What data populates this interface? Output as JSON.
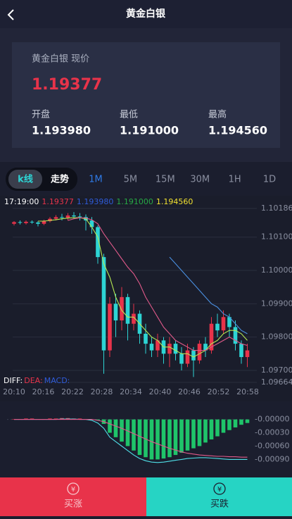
{
  "header": {
    "title": "黄金白银"
  },
  "quote": {
    "label": "黄金白银 现价",
    "price": "1.19377",
    "stats": [
      {
        "label": "开盘",
        "value": "1.193980"
      },
      {
        "label": "最低",
        "value": "1.191000"
      },
      {
        "label": "最高",
        "value": "1.194560"
      }
    ]
  },
  "tabs": {
    "modes": [
      "k线",
      "走势"
    ],
    "periods": [
      "1M",
      "5M",
      "15M",
      "30M",
      "1H",
      "1D"
    ]
  },
  "kline": {
    "info": [
      {
        "text": "17:19:00",
        "color": "#ffffff"
      },
      {
        "text": "1.19377",
        "color": "#e8334a"
      },
      {
        "text": "1.193980",
        "color": "#2f5bd8"
      },
      {
        "text": "1.191000",
        "color": "#27a845"
      },
      {
        "text": "1.194560",
        "color": "#f2e230"
      }
    ],
    "ylim": [
      1.09664,
      1.10186
    ],
    "yticks": [
      {
        "value": 1.10186,
        "label": "1.10186"
      },
      {
        "value": 1.101,
        "label": "1.10100"
      },
      {
        "value": 1.1,
        "label": "1.10000"
      },
      {
        "value": 1.099,
        "label": "1.09900"
      },
      {
        "value": 1.098,
        "label": "1.09800"
      },
      {
        "value": 1.097,
        "label": "1.09700"
      },
      {
        "value": 1.09664,
        "label": "1.09664"
      }
    ],
    "xticks": [
      "20:10",
      "20:16",
      "20:22",
      "20:28",
      "20:34",
      "20:40",
      "20:46",
      "20:52",
      "20:58"
    ],
    "up_color": "#e8334a",
    "down_color": "#2dd4d4",
    "candles": [
      {
        "o": 1.1014,
        "c": 1.10145,
        "h": 1.10148,
        "l": 1.10135
      },
      {
        "o": 1.10145,
        "c": 1.10143,
        "h": 1.1015,
        "l": 1.10138
      },
      {
        "o": 1.10142,
        "c": 1.10146,
        "h": 1.1015,
        "l": 1.10138
      },
      {
        "o": 1.10146,
        "c": 1.10144,
        "h": 1.1015,
        "l": 1.1014
      },
      {
        "o": 1.10144,
        "c": 1.1014,
        "h": 1.10148,
        "l": 1.10132
      },
      {
        "o": 1.1014,
        "c": 1.10148,
        "h": 1.10152,
        "l": 1.10136
      },
      {
        "o": 1.10148,
        "c": 1.10155,
        "h": 1.1016,
        "l": 1.10144
      },
      {
        "o": 1.10155,
        "c": 1.1016,
        "h": 1.10166,
        "l": 1.1015
      },
      {
        "o": 1.1016,
        "c": 1.10158,
        "h": 1.1017,
        "l": 1.1015
      },
      {
        "o": 1.10158,
        "c": 1.10165,
        "h": 1.10172,
        "l": 1.1015
      },
      {
        "o": 1.10165,
        "c": 1.10162,
        "h": 1.10175,
        "l": 1.10155
      },
      {
        "o": 1.10162,
        "c": 1.1016,
        "h": 1.10172,
        "l": 1.1015
      },
      {
        "o": 1.1016,
        "c": 1.1015,
        "h": 1.10168,
        "l": 1.1012
      },
      {
        "o": 1.1015,
        "c": 1.1013,
        "h": 1.1016,
        "l": 1.1011
      },
      {
        "o": 1.1013,
        "c": 1.1004,
        "h": 1.10135,
        "l": 1.1002
      },
      {
        "o": 1.1004,
        "c": 1.0976,
        "h": 1.1005,
        "l": 1.0969
      },
      {
        "o": 1.0976,
        "c": 1.099,
        "h": 1.0992,
        "l": 1.0974
      },
      {
        "o": 1.099,
        "c": 1.0985,
        "h": 1.0993,
        "l": 1.098
      },
      {
        "o": 1.0985,
        "c": 1.0992,
        "h": 1.0995,
        "l": 1.0982
      },
      {
        "o": 1.0992,
        "c": 1.0984,
        "h": 1.0993,
        "l": 1.0979
      },
      {
        "o": 1.0984,
        "c": 1.0987,
        "h": 1.099,
        "l": 1.0982
      },
      {
        "o": 1.0987,
        "c": 1.0981,
        "h": 1.0988,
        "l": 1.0978
      },
      {
        "o": 1.0981,
        "c": 1.0978,
        "h": 1.0984,
        "l": 1.0975
      },
      {
        "o": 1.0978,
        "c": 1.0976,
        "h": 1.098,
        "l": 1.0974
      },
      {
        "o": 1.0976,
        "c": 1.0979,
        "h": 1.0981,
        "l": 1.0974
      },
      {
        "o": 1.0979,
        "c": 1.0975,
        "h": 1.098,
        "l": 1.0972
      },
      {
        "o": 1.0975,
        "c": 1.0978,
        "h": 1.098,
        "l": 1.0971
      },
      {
        "o": 1.0978,
        "c": 1.0975,
        "h": 1.0979,
        "l": 1.0973
      },
      {
        "o": 1.0975,
        "c": 1.0972,
        "h": 1.0977,
        "l": 1.097
      },
      {
        "o": 1.0972,
        "c": 1.0976,
        "h": 1.0978,
        "l": 1.0971
      },
      {
        "o": 1.0976,
        "c": 1.0973,
        "h": 1.0977,
        "l": 1.0968
      },
      {
        "o": 1.0973,
        "c": 1.0978,
        "h": 1.0979,
        "l": 1.0972
      },
      {
        "o": 1.0978,
        "c": 1.0976,
        "h": 1.098,
        "l": 1.0974
      },
      {
        "o": 1.0976,
        "c": 1.0984,
        "h": 1.0986,
        "l": 1.0975
      },
      {
        "o": 1.0984,
        "c": 1.0982,
        "h": 1.0987,
        "l": 1.098
      },
      {
        "o": 1.0982,
        "c": 1.0986,
        "h": 1.0988,
        "l": 1.0981
      },
      {
        "o": 1.0986,
        "c": 1.0983,
        "h": 1.0987,
        "l": 1.098
      },
      {
        "o": 1.0983,
        "c": 1.0978,
        "h": 1.0985,
        "l": 1.0976
      },
      {
        "o": 1.0978,
        "c": 1.0974,
        "h": 1.0979,
        "l": 1.0972
      },
      {
        "o": 1.0974,
        "c": 1.0976,
        "h": 1.0978,
        "l": 1.0971
      }
    ],
    "ma": [
      {
        "color": "#b5e853",
        "values": [
          null,
          null,
          null,
          null,
          1.10148,
          1.10148,
          1.1015,
          1.10152,
          1.10155,
          1.10157,
          1.10158,
          1.10158,
          1.10155,
          1.1013,
          1.101,
          1.1002,
          1.0998,
          1.0992,
          1.0988,
          1.0986,
          1.0986,
          1.0984,
          1.0982,
          1.098,
          1.0979,
          1.0977,
          1.0977,
          1.0976,
          1.0975,
          1.0975,
          1.0974,
          1.0975,
          1.0976,
          1.0978,
          1.0979,
          1.0981,
          1.0982,
          1.0982,
          1.0981,
          1.0979
        ]
      },
      {
        "color": "#e05a8a",
        "values": [
          null,
          null,
          null,
          null,
          null,
          null,
          null,
          null,
          null,
          1.1015,
          1.10155,
          1.10158,
          1.10157,
          1.10152,
          1.1014,
          1.1011,
          1.10085,
          1.1006,
          1.10035,
          1.1001,
          1.0999,
          1.0996,
          1.0992,
          1.0989,
          1.0986,
          1.0983,
          1.0981,
          1.0979,
          1.0978,
          1.0977,
          1.0976,
          1.0976,
          1.0976,
          1.0977,
          1.0978,
          1.0979,
          1.098,
          1.0979,
          1.0978,
          1.09775
        ]
      },
      {
        "color": "#4a8fe0",
        "values": [
          null,
          null,
          null,
          null,
          null,
          null,
          null,
          null,
          null,
          null,
          null,
          null,
          null,
          null,
          null,
          null,
          null,
          null,
          null,
          null,
          null,
          null,
          null,
          null,
          null,
          null,
          1.1004,
          1.1002,
          1.1,
          1.0998,
          1.0996,
          1.0994,
          1.0992,
          1.099,
          1.0989,
          1.0987,
          1.0986,
          1.0984,
          1.0982,
          1.0981
        ]
      }
    ]
  },
  "macd": {
    "labels": [
      {
        "text": "DIFF:",
        "color": "#ffffff"
      },
      {
        "text": "DEA:",
        "color": "#e8334a"
      },
      {
        "text": "MACD:",
        "color": "#2f5bd8"
      }
    ],
    "ylim": [
      -0.0011,
      0.0002
    ],
    "yticks": [
      {
        "value": 0,
        "label": "-0.00000"
      },
      {
        "value": -0.0003,
        "label": "-0.00030"
      },
      {
        "value": -0.0006,
        "label": "-0.00060"
      },
      {
        "value": -0.0009,
        "label": "-0.00090"
      }
    ],
    "up_color": "#e8334a",
    "down_color": "#1fc46a",
    "hist": [
      1e-05,
      1e-05,
      2e-05,
      2e-05,
      1e-05,
      1e-05,
      2e-05,
      2e-05,
      3e-05,
      3e-05,
      2e-05,
      2e-05,
      1e-05,
      0,
      -2e-05,
      -0.0001,
      -0.0003,
      -0.0004,
      -0.0005,
      -0.0006,
      -0.0007,
      -0.0008,
      -0.00085,
      -0.0009,
      -0.0009,
      -0.00088,
      -0.00085,
      -0.0008,
      -0.00075,
      -0.0007,
      -0.00065,
      -0.0006,
      -0.00052,
      -0.00045,
      -0.00038,
      -0.0003,
      -0.00024,
      -0.00018,
      -0.00012,
      -8e-05
    ],
    "lines": [
      {
        "color": "#4fe0e8",
        "values": [
          0,
          0,
          0,
          0,
          0,
          0,
          0,
          0,
          1e-05,
          1e-05,
          1e-05,
          0,
          0,
          -2e-05,
          -8e-05,
          -0.0002,
          -0.0004,
          -0.0005,
          -0.0006,
          -0.0007,
          -0.0008,
          -0.00088,
          -0.00093,
          -0.00096,
          -0.00097,
          -0.00096,
          -0.00094,
          -0.00092,
          -0.0009,
          -0.00088,
          -0.00087,
          -0.00086,
          -0.00086,
          -0.00087,
          -0.00088,
          -0.00089,
          -0.0009,
          -0.0009,
          -0.0009,
          -0.0009
        ]
      },
      {
        "color": "#e05a8a",
        "values": [
          0,
          0,
          0,
          0,
          0,
          0,
          0,
          0,
          0,
          0,
          0,
          0,
          0,
          0,
          -2e-05,
          -5e-05,
          -0.0001,
          -0.00015,
          -0.0002,
          -0.00026,
          -0.00032,
          -0.00038,
          -0.00044,
          -0.0005,
          -0.00055,
          -0.0006,
          -0.00065,
          -0.00069,
          -0.00073,
          -0.00076,
          -0.00078,
          -0.0008,
          -0.00081,
          -0.00082,
          -0.00083,
          -0.00083,
          -0.00084,
          -0.00084,
          -0.00085,
          -0.00085
        ]
      }
    ]
  },
  "buttons": [
    "买涨",
    "买跌"
  ]
}
